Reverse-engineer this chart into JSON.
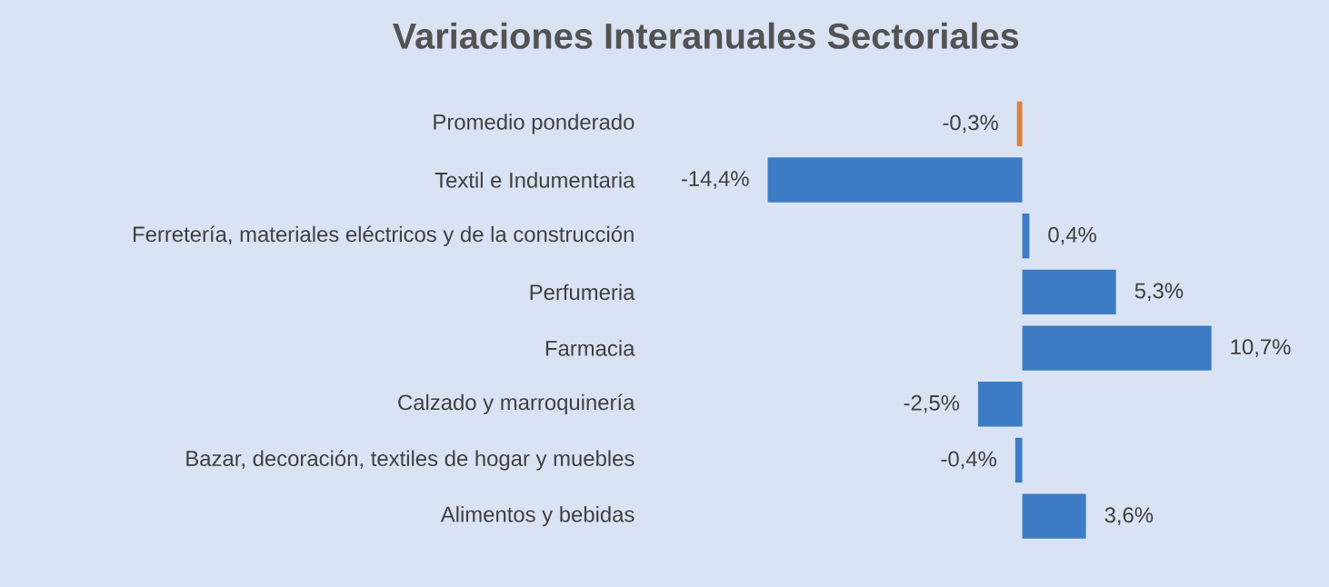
{
  "chart_data": {
    "type": "bar",
    "orientation": "horizontal",
    "title": "Variaciones Interanuales Sectoriales",
    "categories": [
      "Promedio ponderado",
      "Textil e Indumentaria",
      "Ferretería, materiales eléctricos y de la construcción",
      "Perfumeria",
      "Farmacia",
      "Calzado y marroquinería",
      "Bazar, decoración, textiles de hogar y muebles",
      "Alimentos y bebidas"
    ],
    "values": [
      -0.3,
      -14.4,
      0.4,
      5.3,
      10.7,
      -2.5,
      -0.4,
      3.6
    ],
    "colors": [
      "#e0803c",
      "#3d7cc4",
      "#3d7cc4",
      "#3d7cc4",
      "#3d7cc4",
      "#3d7cc4",
      "#3d7cc4",
      "#3d7cc4"
    ],
    "value_labels": [
      "-0,3%",
      "-14,4%",
      "0,4%",
      "5,3%",
      "10,7%",
      "-2,5%",
      "-0,4%",
      "3,6%"
    ]
  }
}
